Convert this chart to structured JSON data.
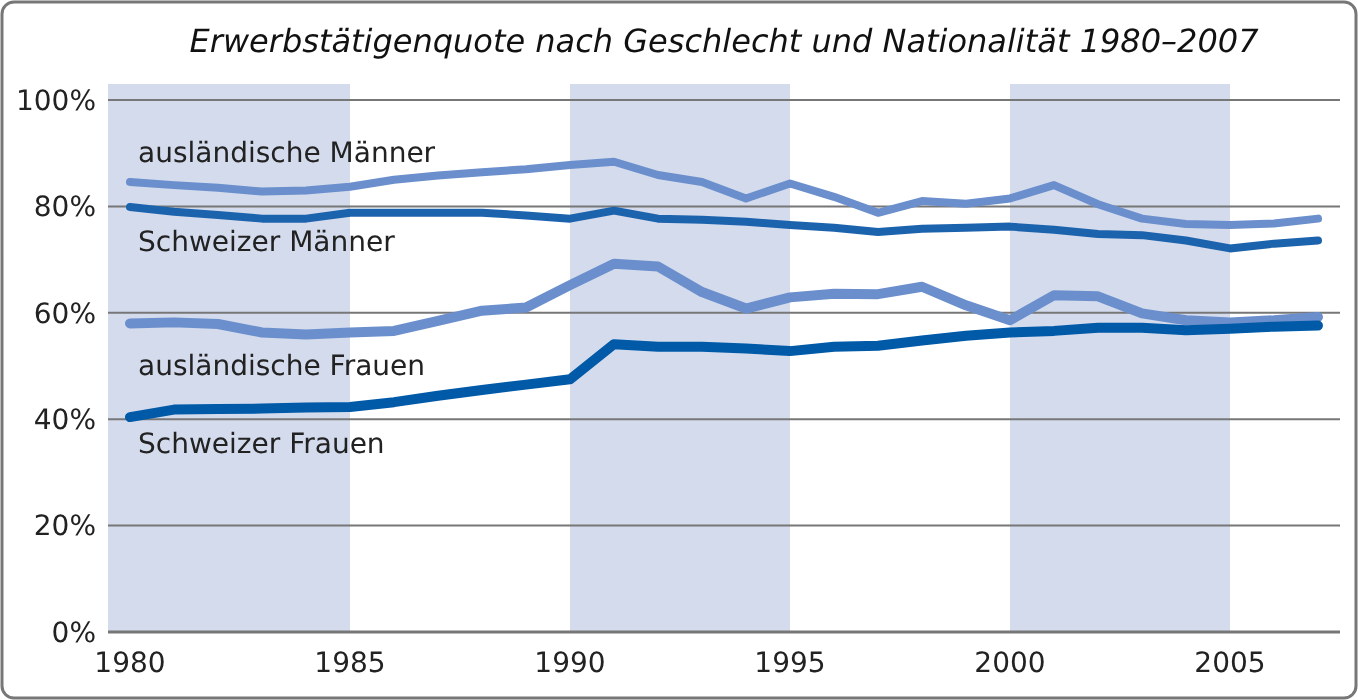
{
  "chart_data": {
    "type": "line",
    "title": "Erwerbstätigenquote nach Geschlecht und Nationalität 1980–2007",
    "x": [
      1980,
      1981,
      1982,
      1983,
      1984,
      1985,
      1986,
      1987,
      1988,
      1989,
      1990,
      1991,
      1992,
      1993,
      1994,
      1995,
      1996,
      1997,
      1998,
      1999,
      2000,
      2001,
      2002,
      2003,
      2004,
      2005,
      2006,
      2007
    ],
    "xlim": [
      1979.5,
      2007.5
    ],
    "xticks": [
      1980,
      1985,
      1990,
      1995,
      2000,
      2005
    ],
    "ylim": [
      0,
      100
    ],
    "yticks": [
      {
        "value": 0,
        "label": "0%"
      },
      {
        "value": 20,
        "label": "20%"
      },
      {
        "value": 40,
        "label": "40%"
      },
      {
        "value": 60,
        "label": "60%"
      },
      {
        "value": 80,
        "label": "80%"
      },
      {
        "value": 100,
        "label": "100%"
      }
    ],
    "grid": "y",
    "bands": [
      {
        "axis": "x",
        "from": 1979.5,
        "to": 1985,
        "color": "#d3dbed"
      },
      {
        "axis": "x",
        "from": 1990,
        "to": 1995,
        "color": "#d3dbed"
      },
      {
        "axis": "x",
        "from": 2000,
        "to": 2005,
        "color": "#d3dbed"
      }
    ],
    "series": [
      {
        "name": "ausländische Männer",
        "color": "#6b8fcc",
        "values": [
          84.6,
          84,
          83.5,
          82.8,
          83,
          83.7,
          85,
          85.8,
          86.4,
          87,
          87.8,
          88.4,
          85.9,
          84.6,
          81.5,
          84.3,
          81.8,
          78.8,
          81,
          80.5,
          81.5,
          84,
          80.4,
          77.7,
          76.7,
          76.5,
          76.8,
          77.7
        ]
      },
      {
        "name": "Schweizer Männer",
        "color": "#1f63ad",
        "values": [
          79.9,
          79,
          78.4,
          77.7,
          77.7,
          78.8,
          78.8,
          78.8,
          78.8,
          78.3,
          77.7,
          79.2,
          77.7,
          77.5,
          77.1,
          76.5,
          76,
          75.2,
          75.8,
          76,
          76.2,
          75.6,
          74.8,
          74.6,
          73.6,
          72.1,
          73,
          73.6
        ]
      },
      {
        "name": "ausländische Frauen",
        "color": "#6b8fcc",
        "values": [
          58,
          58.2,
          57.9,
          56.3,
          55.9,
          56.3,
          56.6,
          58.5,
          60.4,
          61,
          65.2,
          69.2,
          68.7,
          63.9,
          60.8,
          62.9,
          63.6,
          63.5,
          64.9,
          61.4,
          58.6,
          63.3,
          63.1,
          59.9,
          58.6,
          58.2,
          58.6,
          59.2
        ]
      },
      {
        "name": "Schweizer Frauen",
        "color": "#005aa8",
        "values": [
          40.4,
          41.8,
          41.9,
          42,
          42.2,
          42.3,
          43.2,
          44.4,
          45.5,
          46.5,
          47.5,
          54.1,
          53.6,
          53.6,
          53.3,
          52.8,
          53.6,
          53.8,
          54.8,
          55.7,
          56.3,
          56.6,
          57.2,
          57.2,
          56.7,
          57,
          57.4,
          57.6
        ]
      }
    ]
  }
}
